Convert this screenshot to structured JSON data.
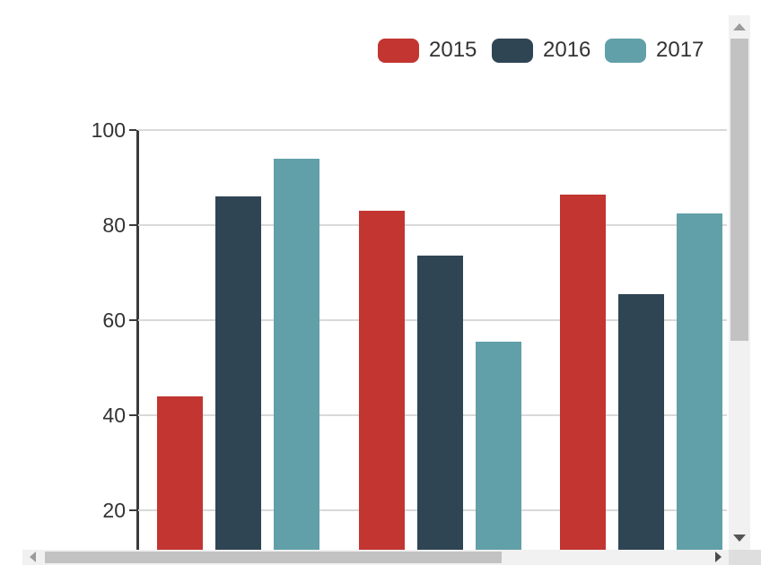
{
  "chart_data": {
    "type": "bar",
    "title": "",
    "xlabel": "",
    "ylabel": "",
    "categories": [
      "",
      "",
      ""
    ],
    "x_axis_labels_visible": false,
    "series": [
      {
        "name": "2015",
        "color": "#c23531",
        "values": [
          44,
          83,
          86.5
        ]
      },
      {
        "name": "2016",
        "color": "#2f4554",
        "values": [
          86,
          73.5,
          65.5
        ]
      },
      {
        "name": "2017",
        "color": "#61a0a8",
        "values": [
          94,
          55.5,
          82.5
        ]
      }
    ],
    "yticks": [
      100,
      80,
      60,
      40,
      20
    ],
    "ylim": [
      0,
      100
    ],
    "grid": true,
    "legend_position": "top-right",
    "legend_entries": [
      "2015",
      "2016",
      "2017"
    ],
    "notes": "Bottom of plot (0 baseline and x-axis labels) is cut off by the scroll viewport."
  },
  "colors": {
    "grid": "#d9d9d9",
    "axis": "#3b3b3b",
    "axis_label": "#333333",
    "legend_text": "#333333",
    "scrollbar_track": "#f1f1f1",
    "scrollbar_thumb": "#c2c2c2",
    "scrollbar_corner": "#dedede"
  }
}
